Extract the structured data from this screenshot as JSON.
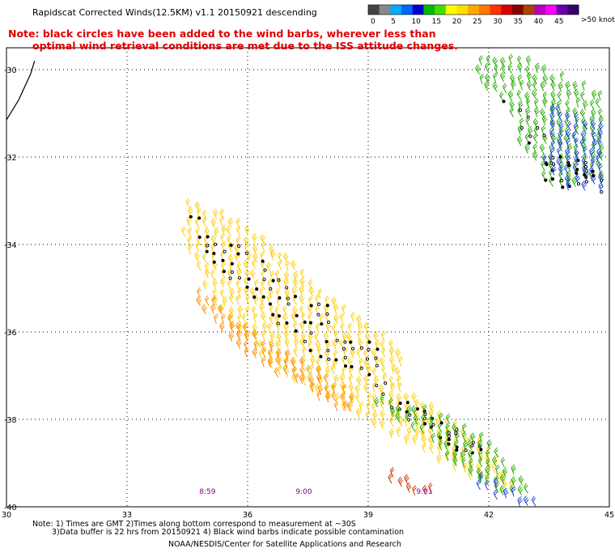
{
  "title": "Rapidscat Corrected Winds(12.5KM) v1.1 20150921 descending",
  "note_line1": "Note: black circles have been added to the wind barbs, wherever less than",
  "note_line2": "optimal wind retrieval conditions are met due to the ISS attitude changes.",
  "footer_line1": "Note: 1) Times are GMT 2)Times along bottom correspond to measurement at ~30S",
  "footer_line2": "3)Data buffer is 22 hrs from 20150921 4) Black wind barbs indicate possible contamination",
  "footer_line3": "NOAA/NESDIS/Center for Satellite Applications and Research",
  "colorbar": {
    "unit_label": ">50 knots",
    "ticks": [
      "0",
      "5",
      "10",
      "15",
      "20",
      "25",
      "30",
      "35",
      "40",
      "45"
    ],
    "colors": [
      "#444444",
      "#888888",
      "#00aaff",
      "#0066ff",
      "#0000cc",
      "#00bb00",
      "#44dd00",
      "#ffff00",
      "#ffdd00",
      "#ffaa00",
      "#ff7700",
      "#ff3300",
      "#dd0000",
      "#880000",
      "#aa4400",
      "#bb00bb",
      "#ff00ff",
      "#6600aa",
      "#330066"
    ]
  },
  "chart_data": {
    "type": "scatter",
    "title": "Rapidscat Corrected Winds(12.5KM) v1.1 20150921 descending",
    "x_ticks": [
      "30",
      "33",
      "36",
      "39",
      "42",
      "45"
    ],
    "y_ticks": [
      "-30",
      "-32",
      "-34",
      "-36",
      "-38",
      "-40"
    ],
    "xlim": [
      30,
      45
    ],
    "ylim": [
      -40,
      -29.5
    ],
    "grid": true,
    "time_labels": [
      {
        "text": "8:59",
        "lon": 35.0
      },
      {
        "text": "9:00",
        "lon": 37.4
      },
      {
        "text": "9:01",
        "lon": 40.4
      }
    ],
    "coastline": [
      [
        30.0,
        -31.15
      ],
      [
        30.3,
        -30.7
      ],
      [
        30.6,
        -30.1
      ],
      [
        30.7,
        -29.8
      ]
    ],
    "swaths": [
      {
        "name": "",
        "color": "#ffcc00",
        "points": [
          [
            34.5,
            -33.0
          ],
          [
            35.5,
            -33.4
          ],
          [
            36.5,
            -34.0
          ],
          [
            37.5,
            -34.8
          ],
          [
            38.5,
            -35.6
          ],
          [
            39.5,
            -36.2
          ],
          [
            39.8,
            -36.5
          ],
          [
            40.0,
            -37.5
          ],
          [
            40.8,
            -37.9
          ],
          [
            41.5,
            -38.4
          ],
          [
            42.0,
            -38.7
          ],
          [
            42.5,
            -39.4
          ],
          [
            43.0,
            -39.8
          ],
          [
            42.0,
            -39.6
          ],
          [
            40.8,
            -39.1
          ],
          [
            39.5,
            -38.4
          ],
          [
            38.0,
            -37.6
          ],
          [
            36.8,
            -37.0
          ],
          [
            35.5,
            -36.0
          ],
          [
            34.8,
            -34.8
          ],
          [
            34.4,
            -33.8
          ]
        ]
      },
      {
        "name": "",
        "color": "#ff8800",
        "points": [
          [
            34.6,
            -34.9
          ],
          [
            35.3,
            -35.5
          ],
          [
            36.0,
            -36.0
          ],
          [
            37.0,
            -36.6
          ],
          [
            38.0,
            -37.1
          ],
          [
            38.8,
            -37.6
          ],
          [
            38.6,
            -38.0
          ],
          [
            37.6,
            -37.5
          ],
          [
            36.5,
            -36.9
          ],
          [
            35.5,
            -36.3
          ],
          [
            34.7,
            -35.4
          ]
        ]
      },
      {
        "name": "",
        "color": "#22aa00",
        "points": [
          [
            40.5,
            -37.9
          ],
          [
            41.2,
            -38.1
          ],
          [
            42.0,
            -38.6
          ],
          [
            42.6,
            -39.2
          ],
          [
            43.2,
            -39.7
          ],
          [
            42.6,
            -39.9
          ],
          [
            41.8,
            -39.5
          ],
          [
            40.8,
            -38.8
          ],
          [
            39.8,
            -38.1
          ],
          [
            38.8,
            -37.5
          ]
        ]
      },
      {
        "name": "",
        "color": "#cc3300",
        "points": [
          [
            39.4,
            -39.2
          ],
          [
            39.9,
            -39.4
          ],
          [
            40.6,
            -39.6
          ],
          [
            41.0,
            -39.9
          ],
          [
            40.2,
            -39.8
          ],
          [
            39.6,
            -39.5
          ]
        ]
      },
      {
        "name": "",
        "color": "#2244dd",
        "points": [
          [
            41.6,
            -39.3
          ],
          [
            42.2,
            -39.5
          ],
          [
            42.8,
            -39.8
          ],
          [
            43.3,
            -40.0
          ],
          [
            42.5,
            -40.0
          ],
          [
            41.8,
            -39.7
          ]
        ]
      },
      {
        "name": "",
        "color": "#22aa00",
        "points": [
          [
            41.8,
            -29.8
          ],
          [
            43.0,
            -29.9
          ],
          [
            44.0,
            -30.3
          ],
          [
            45.0,
            -30.6
          ],
          [
            45.0,
            -32.7
          ],
          [
            43.5,
            -32.7
          ],
          [
            42.8,
            -31.8
          ],
          [
            42.4,
            -30.8
          ],
          [
            41.6,
            -30.2
          ]
        ]
      },
      {
        "name": "",
        "color": "#2244dd",
        "points": [
          [
            43.5,
            -30.8
          ],
          [
            44.3,
            -31.2
          ],
          [
            45.0,
            -31.4
          ],
          [
            45.0,
            -32.8
          ],
          [
            44.0,
            -32.8
          ],
          [
            43.4,
            -32.2
          ]
        ]
      }
    ],
    "flagged_regions": [
      {
        "points": [
          [
            34.5,
            -33.2
          ],
          [
            35.2,
            -33.5
          ],
          [
            36.0,
            -34.1
          ],
          [
            37.0,
            -34.8
          ],
          [
            38.0,
            -35.4
          ],
          [
            39.0,
            -35.9
          ],
          [
            39.6,
            -36.1
          ],
          [
            39.6,
            -37.4
          ],
          [
            40.5,
            -37.8
          ],
          [
            41.2,
            -38.2
          ],
          [
            42.0,
            -38.7
          ],
          [
            41.4,
            -38.9
          ],
          [
            40.5,
            -38.3
          ],
          [
            39.3,
            -37.6
          ],
          [
            38.6,
            -37.0
          ],
          [
            37.5,
            -36.4
          ],
          [
            36.5,
            -35.6
          ],
          [
            35.4,
            -34.7
          ],
          [
            34.8,
            -34.0
          ]
        ]
      },
      {
        "points": [
          [
            41.8,
            -29.9
          ],
          [
            42.6,
            -30.6
          ],
          [
            43.2,
            -31.2
          ],
          [
            44.0,
            -32.0
          ],
          [
            45.0,
            -32.3
          ],
          [
            45.0,
            -32.8
          ],
          [
            43.5,
            -32.8
          ],
          [
            43.2,
            -32.0
          ],
          [
            42.5,
            -31.0
          ]
        ]
      }
    ]
  }
}
